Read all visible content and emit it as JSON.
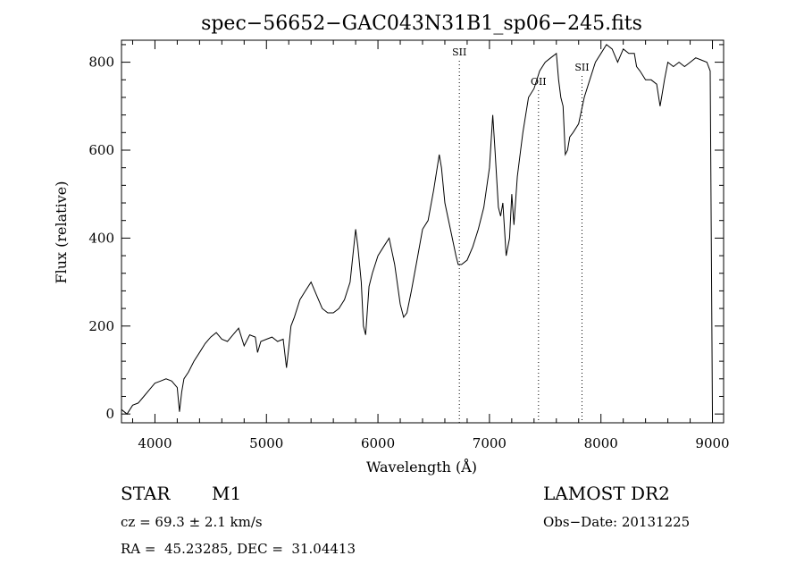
{
  "chart_data": {
    "type": "line",
    "title": "spec−56652−GAC043N31B1_sp06−245.fits",
    "xlabel": "Wavelength (Å)",
    "ylabel": "Flux (relative)",
    "xlim": [
      3700,
      9100
    ],
    "ylim": [
      -20,
      850
    ],
    "x_ticks": [
      "4000",
      "5000",
      "6000",
      "7000",
      "8000",
      "9000"
    ],
    "y_ticks": [
      "0",
      "200",
      "400",
      "600",
      "800"
    ],
    "grid": false,
    "line_color": "#000000",
    "x": [
      3700,
      3750,
      3800,
      3850,
      3900,
      3950,
      4000,
      4050,
      4100,
      4150,
      4200,
      4220,
      4240,
      4260,
      4300,
      4350,
      4400,
      4450,
      4500,
      4550,
      4600,
      4650,
      4700,
      4750,
      4800,
      4850,
      4900,
      4920,
      4950,
      5000,
      5050,
      5100,
      5150,
      5180,
      5200,
      5220,
      5250,
      5300,
      5350,
      5400,
      5450,
      5500,
      5550,
      5600,
      5650,
      5700,
      5750,
      5800,
      5820,
      5850,
      5870,
      5890,
      5920,
      5950,
      6000,
      6050,
      6100,
      6150,
      6200,
      6230,
      6260,
      6300,
      6350,
      6400,
      6450,
      6500,
      6550,
      6570,
      6600,
      6650,
      6700,
      6720,
      6750,
      6800,
      6850,
      6900,
      6950,
      7000,
      7030,
      7050,
      7080,
      7100,
      7120,
      7150,
      7180,
      7200,
      7220,
      7250,
      7280,
      7300,
      7350,
      7400,
      7450,
      7500,
      7550,
      7600,
      7620,
      7640,
      7660,
      7680,
      7700,
      7720,
      7750,
      7800,
      7850,
      7900,
      7950,
      8000,
      8050,
      8100,
      8150,
      8200,
      8250,
      8300,
      8320,
      8350,
      8400,
      8450,
      8500,
      8530,
      8550,
      8570,
      8600,
      8650,
      8700,
      8750,
      8800,
      8850,
      8900,
      8950,
      8980,
      9000
    ],
    "y": [
      10,
      0,
      20,
      25,
      40,
      55,
      70,
      75,
      80,
      75,
      60,
      5,
      50,
      80,
      95,
      120,
      140,
      160,
      175,
      185,
      170,
      165,
      180,
      195,
      155,
      180,
      175,
      140,
      165,
      170,
      175,
      165,
      170,
      105,
      150,
      200,
      220,
      260,
      280,
      300,
      270,
      240,
      230,
      230,
      240,
      260,
      300,
      420,
      380,
      300,
      200,
      180,
      290,
      320,
      360,
      380,
      400,
      340,
      250,
      220,
      230,
      280,
      350,
      420,
      440,
      510,
      590,
      560,
      480,
      420,
      360,
      340,
      340,
      350,
      380,
      420,
      470,
      560,
      680,
      600,
      470,
      450,
      480,
      360,
      400,
      500,
      430,
      540,
      600,
      640,
      720,
      740,
      780,
      800,
      810,
      820,
      760,
      720,
      700,
      590,
      600,
      630,
      640,
      660,
      720,
      760,
      800,
      820,
      840,
      830,
      800,
      830,
      820,
      820,
      790,
      780,
      760,
      760,
      750,
      700,
      730,
      760,
      800,
      790,
      800,
      790,
      800,
      810,
      805,
      800,
      780,
      0
    ],
    "annotations": [
      {
        "label": "SII",
        "x": 6730
      },
      {
        "label": "OII",
        "x": 7440
      },
      {
        "label": "SII",
        "x": 7830
      }
    ]
  },
  "footer": {
    "object_class": "STAR",
    "subclass": "M1",
    "survey": "LAMOST DR2",
    "cz": "cz = 69.3 ± 2.1 km/s",
    "obs_date": "Obs−Date: 20131225",
    "coords": "RA =  45.23285, DEC =  31.04413"
  }
}
